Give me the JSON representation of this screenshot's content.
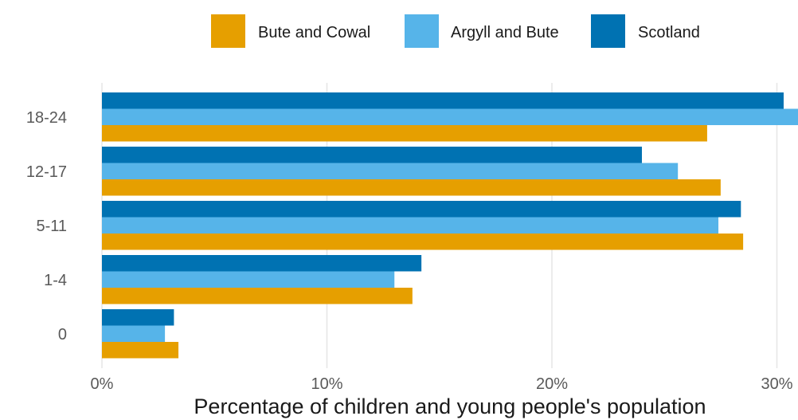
{
  "chart_data": {
    "type": "bar",
    "orientation": "horizontal",
    "categories": [
      "18-24",
      "12-17",
      "5-11",
      "1-4",
      "0"
    ],
    "series": [
      {
        "name": "Scotland",
        "color": "#0072B2",
        "values": [
          30.3,
          24.0,
          28.4,
          14.2,
          3.2
        ]
      },
      {
        "name": "Argyll and Bute",
        "color": "#56B4E9",
        "values": [
          31.0,
          25.6,
          27.4,
          13.0,
          2.8
        ]
      },
      {
        "name": "Bute and Cowal",
        "color": "#E69F00",
        "values": [
          26.9,
          27.5,
          28.5,
          13.8,
          3.4
        ]
      }
    ],
    "legend": {
      "position": "top",
      "order": [
        "Bute and Cowal",
        "Argyll and Bute",
        "Scotland"
      ]
    },
    "xlabel": "Percentage of children and young people's population",
    "ylabel": "",
    "xlim": [
      0,
      30.5
    ],
    "xticks": [
      0,
      10,
      20,
      30
    ],
    "xtick_labels": [
      "0%",
      "10%",
      "20%",
      "30%"
    ],
    "grid": "vertical"
  }
}
